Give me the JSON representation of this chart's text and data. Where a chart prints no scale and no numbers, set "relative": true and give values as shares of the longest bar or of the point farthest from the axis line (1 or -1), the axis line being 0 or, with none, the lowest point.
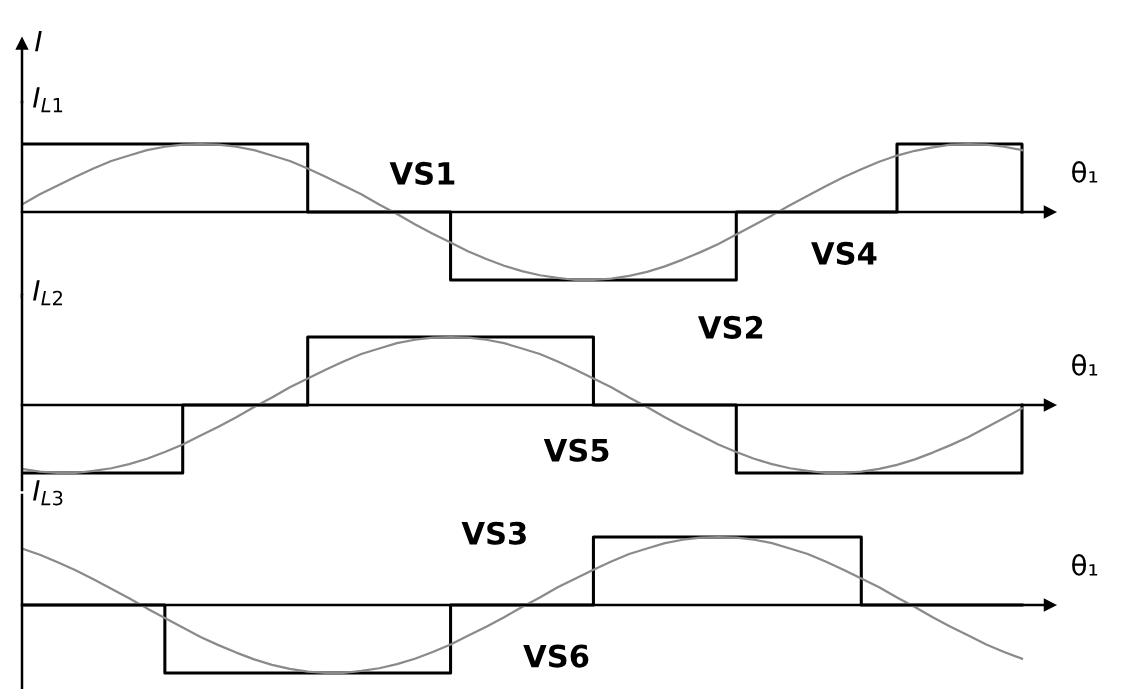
{
  "chart_data": [
    {
      "type": "line",
      "relative": true,
      "ylabel": "I",
      "xlabel": "θ₁",
      "categories": [
        null,
        null,
        null,
        null,
        null,
        null,
        null,
        null,
        null,
        null,
        null,
        null,
        null,
        null,
        null,
        null,
        null,
        null,
        null,
        null,
        null,
        null,
        null,
        null,
        null,
        null,
        null,
        null,
        null,
        null,
        null,
        null,
        null,
        null,
        null,
        null,
        null,
        null,
        null,
        null,
        null,
        null,
        null,
        null,
        null,
        null,
        null,
        null,
        null,
        null,
        null,
        null,
        null,
        null,
        null,
        null,
        null
      ],
      "series": [
        {
          "type": "step",
          "color": "#000000",
          "values": [
            1,
            1,
            1,
            1,
            1,
            1,
            1,
            1,
            1,
            1,
            1,
            1,
            1,
            1,
            1,
            1,
            0,
            0,
            0,
            0,
            0,
            0,
            0,
            0,
            -1,
            -1,
            -1,
            -1,
            -1,
            -1,
            -1,
            -1,
            -1,
            -1,
            -1,
            -1,
            -1,
            -1,
            -1,
            -1,
            0,
            0,
            0,
            0,
            0,
            0,
            0,
            0,
            0,
            1,
            1,
            1,
            1,
            1,
            1,
            1,
            0
          ]
        },
        {
          "type": "line",
          "name": "I$_{L1}$",
          "color": "#8a8a8a",
          "values": [
            0.11,
            0.26,
            0.39,
            0.52,
            0.64,
            0.75,
            0.83,
            0.91,
            0.96,
            0.99,
            1.0,
            0.99,
            0.96,
            0.91,
            0.83,
            0.75,
            0.64,
            0.52,
            0.39,
            0.26,
            0.11,
            -0.03,
            -0.18,
            -0.32,
            -0.45,
            -0.58,
            -0.69,
            -0.79,
            -0.87,
            -0.93,
            -0.97,
            -1.0,
            -1.0,
            -0.98,
            -0.94,
            -0.88,
            -0.8,
            -0.7,
            -0.59,
            -0.47,
            -0.33,
            -0.19,
            -0.05,
            0.1,
            0.24,
            0.38,
            0.51,
            0.63,
            0.74,
            0.83,
            0.9,
            0.95,
            0.99,
            1.0,
            0.99,
            0.96,
            0.91
          ]
        }
      ],
      "annotations": [
        "VS1",
        "VS4"
      ]
    },
    {
      "type": "line",
      "relative": true,
      "xlabel": "θ₁",
      "categories": [
        null,
        null,
        null,
        null,
        null,
        null,
        null,
        null,
        null,
        null,
        null,
        null,
        null,
        null,
        null,
        null,
        null,
        null,
        null,
        null,
        null,
        null,
        null,
        null,
        null,
        null,
        null,
        null,
        null,
        null,
        null,
        null,
        null,
        null,
        null,
        null,
        null,
        null,
        null,
        null,
        null,
        null,
        null,
        null,
        null,
        null,
        null,
        null,
        null,
        null,
        null,
        null,
        null,
        null,
        null,
        null,
        null
      ],
      "series": [
        {
          "type": "step",
          "color": "#000000",
          "values": [
            -1,
            -1,
            -1,
            -1,
            -1,
            -1,
            -1,
            -1,
            -1,
            0,
            0,
            0,
            0,
            0,
            0,
            0,
            1,
            1,
            1,
            1,
            1,
            1,
            1,
            1,
            1,
            1,
            1,
            1,
            1,
            1,
            1,
            1,
            0,
            0,
            0,
            0,
            0,
            0,
            0,
            0,
            -1,
            -1,
            -1,
            -1,
            -1,
            -1,
            -1,
            -1,
            -1,
            -1,
            -1,
            -1,
            -1,
            -1,
            -1,
            -1,
            0
          ]
        },
        {
          "type": "line",
          "name": "I$_{L2}$",
          "color": "#8a8a8a",
          "values": [
            -0.94,
            -0.98,
            -1.0,
            -1.0,
            -0.97,
            -0.93,
            -0.87,
            -0.79,
            -0.69,
            -0.58,
            -0.45,
            -0.32,
            -0.18,
            -0.03,
            0.11,
            0.26,
            0.39,
            0.52,
            0.64,
            0.75,
            0.83,
            0.91,
            0.96,
            0.99,
            1.0,
            0.99,
            0.96,
            0.91,
            0.83,
            0.75,
            0.64,
            0.52,
            0.39,
            0.26,
            0.11,
            -0.03,
            -0.18,
            -0.32,
            -0.45,
            -0.58,
            -0.69,
            -0.79,
            -0.87,
            -0.93,
            -0.97,
            -1.0,
            -1.0,
            -0.98,
            -0.94,
            -0.88,
            -0.8,
            -0.7,
            -0.59,
            -0.47,
            -0.33,
            -0.19,
            -0.05
          ]
        }
      ],
      "annotations": [
        "VS2",
        "VS5"
      ]
    },
    {
      "type": "line",
      "relative": true,
      "xlabel": "θ₁",
      "categories": [
        null,
        null,
        null,
        null,
        null,
        null,
        null,
        null,
        null,
        null,
        null,
        null,
        null,
        null,
        null,
        null,
        null,
        null,
        null,
        null,
        null,
        null,
        null,
        null,
        null,
        null,
        null,
        null,
        null,
        null,
        null,
        null,
        null,
        null,
        null,
        null,
        null,
        null,
        null,
        null,
        null,
        null,
        null,
        null,
        null,
        null,
        null,
        null,
        null,
        null,
        null,
        null,
        null,
        null,
        null,
        null,
        null
      ],
      "series": [
        {
          "type": "step",
          "color": "#000000",
          "values": [
            0,
            0,
            0,
            0,
            0,
            0,
            0,
            0,
            -1,
            -1,
            -1,
            -1,
            -1,
            -1,
            -1,
            -1,
            -1,
            -1,
            -1,
            -1,
            -1,
            -1,
            -1,
            -1,
            0,
            0,
            0,
            0,
            0,
            0,
            0,
            0,
            1,
            1,
            1,
            1,
            1,
            1,
            1,
            1,
            1,
            1,
            1,
            1,
            1,
            1,
            1,
            0,
            0,
            0,
            0,
            0,
            0,
            0,
            0,
            0,
            0
          ]
        },
        {
          "type": "line",
          "name": "I$_{L3}$",
          "color": "#8a8a8a",
          "values": [
            0.83,
            0.74,
            0.63,
            0.51,
            0.38,
            0.24,
            0.1,
            -0.05,
            -0.19,
            -0.33,
            -0.47,
            -0.59,
            -0.7,
            -0.8,
            -0.88,
            -0.94,
            -0.98,
            -1.0,
            -1.0,
            -0.97,
            -0.93,
            -0.87,
            -0.79,
            -0.69,
            -0.58,
            -0.45,
            -0.32,
            -0.18,
            -0.03,
            0.11,
            0.26,
            0.39,
            0.52,
            0.64,
            0.75,
            0.83,
            0.91,
            0.96,
            0.99,
            1.0,
            0.99,
            0.96,
            0.91,
            0.83,
            0.75,
            0.64,
            0.52,
            0.39,
            0.26,
            0.11,
            -0.03,
            -0.18,
            -0.32,
            -0.45,
            -0.58,
            -0.69,
            -0.79
          ]
        }
      ],
      "annotations": [
        "VS3",
        "VS6"
      ]
    }
  ]
}
